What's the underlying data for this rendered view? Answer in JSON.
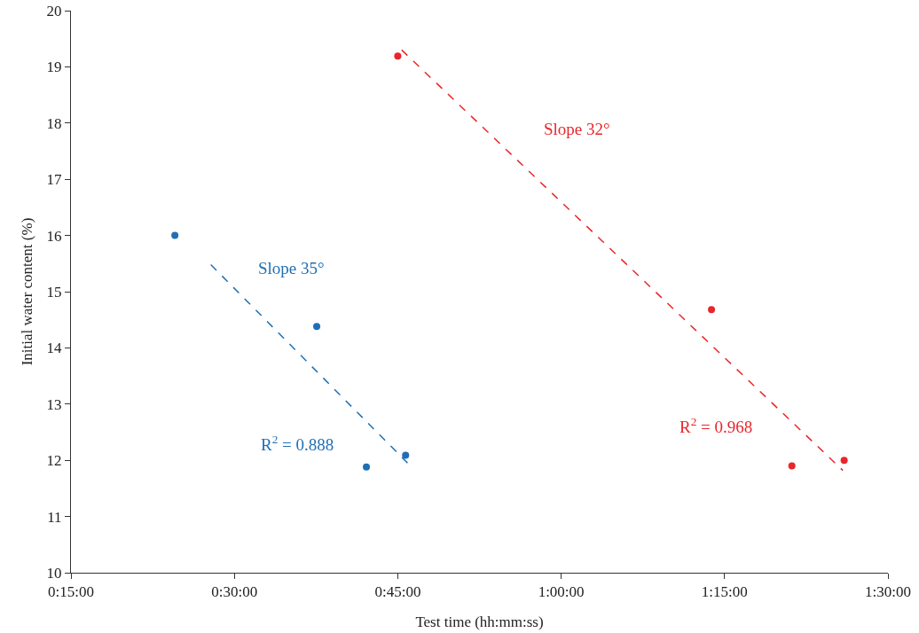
{
  "chart_data": {
    "type": "scatter",
    "xlabel": "Test time (hh:mm:ss)",
    "ylabel": "Initial water content (%)",
    "xlim": [
      0.25,
      1.5
    ],
    "xticks": [
      {
        "value": 0.25,
        "label": "0:15:00"
      },
      {
        "value": 0.5,
        "label": "0:30:00"
      },
      {
        "value": 0.75,
        "label": "0:45:00"
      },
      {
        "value": 1,
        "label": "1:00:00"
      },
      {
        "value": 1.25,
        "label": "1:15:00"
      },
      {
        "value": 1.5,
        "label": "1:30:00"
      }
    ],
    "ylim": [
      10,
      20
    ],
    "yticks": [
      10,
      11,
      12,
      13,
      14,
      15,
      16,
      17,
      18,
      19,
      20
    ],
    "grid": false,
    "series": [
      {
        "marker": "circle",
        "color": "#1f6fb5",
        "x": [
          0.409,
          0.626,
          0.702,
          0.762
        ],
        "values": [
          16.0,
          14.38,
          11.88,
          12.09
        ]
      },
      {
        "marker": "circle",
        "color": "#e8262b",
        "x": [
          0.75,
          1.23,
          1.353,
          1.433
        ],
        "values": [
          19.19,
          14.68,
          11.9,
          12.0
        ]
      },
      {
        "type": "line",
        "marker": "none",
        "line_style": "dashed",
        "color": "#1f6fb5",
        "x": [
          0.464,
          0.766
        ],
        "values": [
          15.48,
          11.94
        ]
      },
      {
        "type": "line",
        "marker": "none",
        "line_style": "dashed",
        "color": "#e8262b",
        "x": [
          0.756,
          1.431
        ],
        "values": [
          19.3,
          11.82
        ]
      }
    ],
    "annotations": [
      "Slope 35°",
      "R$^{2}$ = 0.888",
      "Slope 32°",
      "R$^{2}$ = 0.968"
    ]
  }
}
